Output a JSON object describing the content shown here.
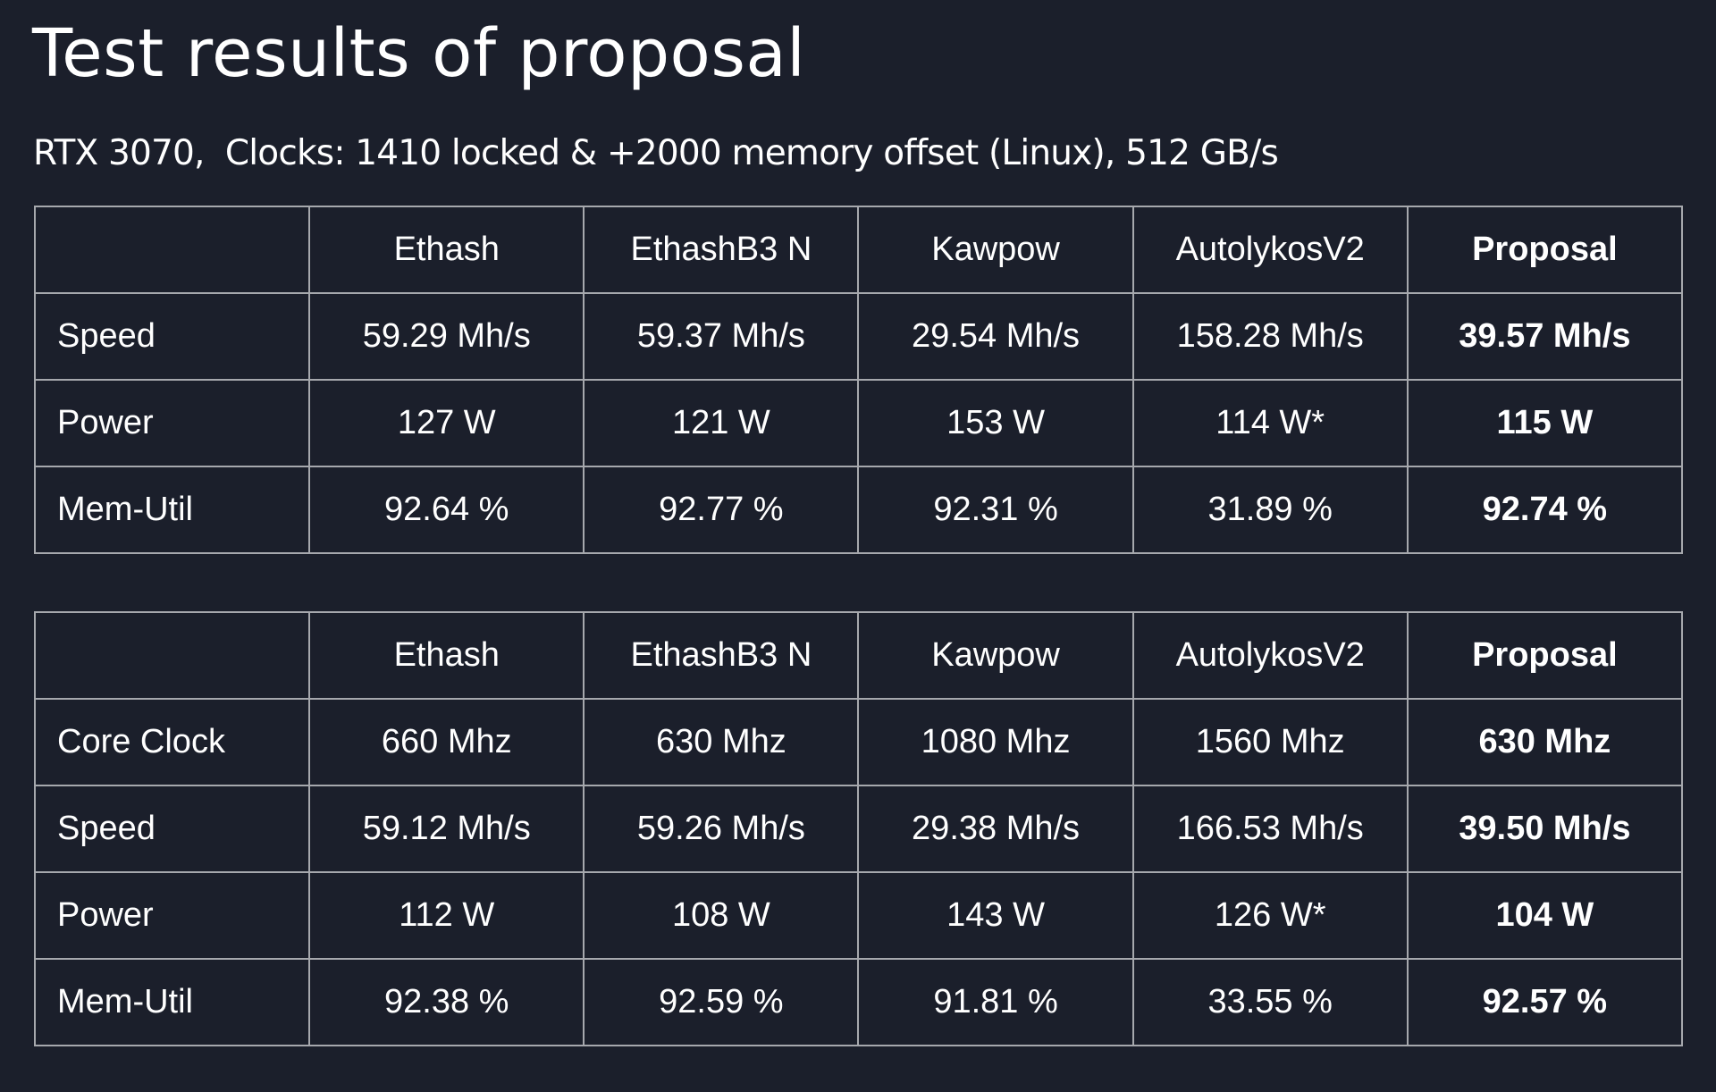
{
  "title": "Test results of proposal",
  "subtitle": "RTX 3070,  Clocks: 1410 locked & +2000 memory offset (Linux), 512 GB/s",
  "tables": [
    {
      "headers": [
        "",
        "Ethash",
        "EthashB3 N",
        "Kawpow",
        "AutolykosV2",
        "Proposal"
      ],
      "rows": [
        [
          "Speed",
          "59.29 Mh/s",
          "59.37 Mh/s",
          "29.54 Mh/s",
          "158.28 Mh/s",
          "39.57 Mh/s"
        ],
        [
          "Power",
          "127 W",
          "121 W",
          "153 W",
          "114 W*",
          "115 W"
        ],
        [
          "Mem-Util",
          "92.64 %",
          "92.77 %",
          "92.31 %",
          "31.89 %",
          "92.74 %"
        ]
      ]
    },
    {
      "headers": [
        "",
        "Ethash",
        "EthashB3 N",
        "Kawpow",
        "AutolykosV2",
        "Proposal"
      ],
      "rows": [
        [
          "Core Clock",
          "660 Mhz",
          "630 Mhz",
          "1080 Mhz",
          "1560 Mhz",
          "630 Mhz"
        ],
        [
          "Speed",
          "59.12 Mh/s",
          "59.26 Mh/s",
          "29.38 Mh/s",
          "166.53 Mh/s",
          "39.50 Mh/s"
        ],
        [
          "Power",
          "112 W",
          "108 W",
          "143 W",
          "126 W*",
          "104 W"
        ],
        [
          "Mem-Util",
          "92.38 %",
          "92.59 %",
          "91.81 %",
          "33.55 %",
          "92.57 %"
        ]
      ]
    }
  ]
}
